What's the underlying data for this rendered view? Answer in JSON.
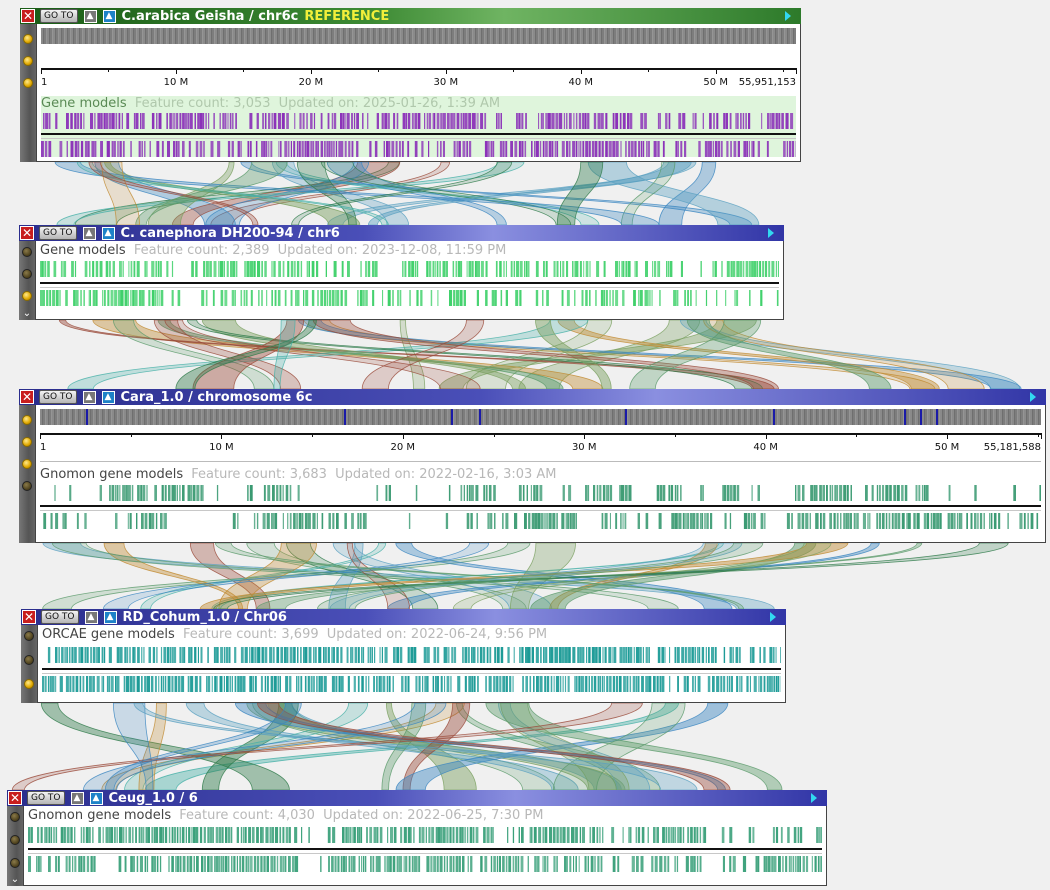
{
  "panels": [
    {
      "id": "p1",
      "title": "C.arabica Geisha / chr6c",
      "badge": "REFERENCE",
      "goto_label": "GO TO",
      "ruler": {
        "first_label": "1",
        "labels": [
          "10 M",
          "20 M",
          "30 M",
          "40 M",
          "50 M"
        ],
        "last_label": "55,951,153"
      },
      "track": {
        "name": "Gene models",
        "feature_count": "Feature count: 3,053",
        "updated": "Updated on: 2025-01-26, 1:39 AM"
      }
    },
    {
      "id": "p2",
      "title": "C. canephora DH200-94 / chr6",
      "goto_label": "GO TO",
      "track": {
        "name": "Gene models",
        "feature_count": "Feature count: 2,389",
        "updated": "Updated on: 2023-12-08, 11:59 PM"
      }
    },
    {
      "id": "p3",
      "title": "Cara_1.0 / chromosome 6c",
      "goto_label": "GO TO",
      "ruler": {
        "first_label": "1",
        "labels": [
          "10 M",
          "20 M",
          "30 M",
          "40 M",
          "50 M"
        ],
        "last_label": "55,181,588"
      },
      "track": {
        "name": "Gnomon gene models",
        "feature_count": "Feature count: 3,683",
        "updated": "Updated on: 2022-02-16, 3:03 AM"
      }
    },
    {
      "id": "p4",
      "title": "RD_Cohum_1.0 / Chr06",
      "goto_label": "GO TO",
      "track": {
        "name": "ORCAE gene models",
        "feature_count": "Feature count: 3,699",
        "updated": "Updated on: 2022-06-24, 9:56 PM"
      }
    },
    {
      "id": "p5",
      "title": "Ceug_1.0 / 6",
      "goto_label": "GO TO",
      "track": {
        "name": "Gnomon gene models",
        "feature_count": "Feature count: 4,030",
        "updated": "Updated on: 2022-06-25, 7:30 PM"
      }
    }
  ],
  "colors": {
    "titlebar_reference": "#2e7a28",
    "titlebar_default": "#3a3ea8",
    "reference_badge": "#f2ef3a",
    "gene_purple": "#8a2fb8",
    "gene_green": "#3fd06a",
    "gene_seagreen": "#3a9a72",
    "gene_teal": "#1a9a96",
    "gene_ceug": "#3aa07a"
  },
  "icons": [
    "close-icon",
    "up-arrow-icon",
    "play-right-icon",
    "status-dot-icon",
    "chevron-down-icon"
  ]
}
